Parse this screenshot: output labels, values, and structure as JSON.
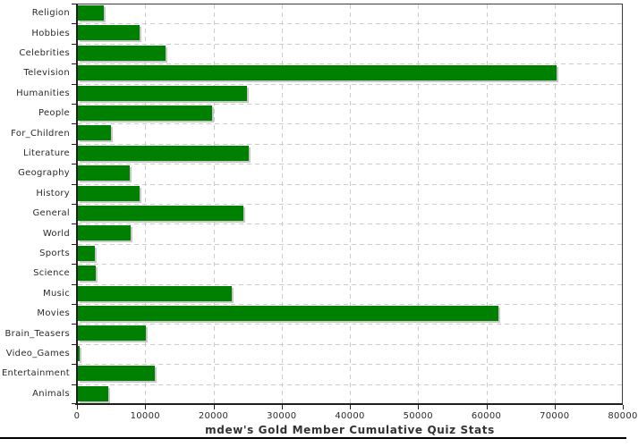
{
  "chart_data": {
    "type": "bar",
    "orientation": "horizontal",
    "title": "mdew's Gold Member Cumulative Quiz Stats",
    "categories": [
      "Religion",
      "Hobbies",
      "Celebrities",
      "Television",
      "Humanities",
      "People",
      "For_Children",
      "Literature",
      "Geography",
      "History",
      "General",
      "World",
      "Sports",
      "Science",
      "Music",
      "Movies",
      "Brain_Teasers",
      "Video_Games",
      "Entertainment",
      "Animals"
    ],
    "values": [
      3800,
      9000,
      12900,
      70200,
      24800,
      19700,
      4800,
      25000,
      7600,
      9100,
      24200,
      7800,
      2500,
      2600,
      22600,
      61700,
      10000,
      300,
      11300,
      4400
    ],
    "xlabel": "",
    "ylabel": "",
    "xlim": [
      0,
      80000
    ],
    "x_ticks": [
      0,
      10000,
      20000,
      30000,
      40000,
      50000,
      60000,
      70000,
      80000
    ],
    "x_tick_labels": [
      "0",
      "10000",
      "20000",
      "30000",
      "40000",
      "50000",
      "60000",
      "70000",
      "80000"
    ],
    "grid": "dashed",
    "legend": "none",
    "colors": {
      "bar": "#008000",
      "bar_shadow": "#c8c8c8",
      "gridline": "#cccccc",
      "axis": "#1f1f1f",
      "text": "#2b2b2b",
      "title_text": "#333333",
      "background": "#ffffff"
    }
  }
}
